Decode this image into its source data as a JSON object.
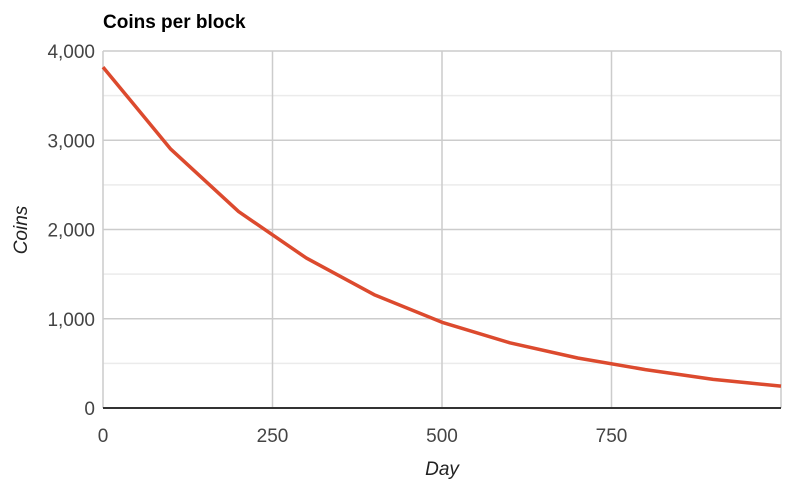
{
  "chart_data": {
    "type": "line",
    "title": "Coins per block",
    "xlabel": "Day",
    "ylabel": "Coins",
    "xlim": [
      0,
      1000
    ],
    "ylim": [
      0,
      4000
    ],
    "x_ticks": [
      0,
      250,
      500,
      750
    ],
    "x_tick_labels": [
      "0",
      "250",
      "500",
      "750"
    ],
    "y_ticks": [
      0,
      1000,
      2000,
      3000,
      4000
    ],
    "y_tick_labels": [
      "0",
      "1,000",
      "2,000",
      "3,000",
      "4,000"
    ],
    "grid": true,
    "colors": {
      "line": "#dc4a2e",
      "grid_major": "#cccccc",
      "grid_minor": "#ebebeb",
      "axis": "#333333"
    },
    "series": [
      {
        "x": [
          0,
          100,
          200,
          300,
          400,
          500,
          600,
          700,
          800,
          900,
          1000
        ],
        "values": [
          3820,
          2900,
          2200,
          1680,
          1270,
          960,
          730,
          560,
          430,
          320,
          245
        ]
      }
    ]
  }
}
